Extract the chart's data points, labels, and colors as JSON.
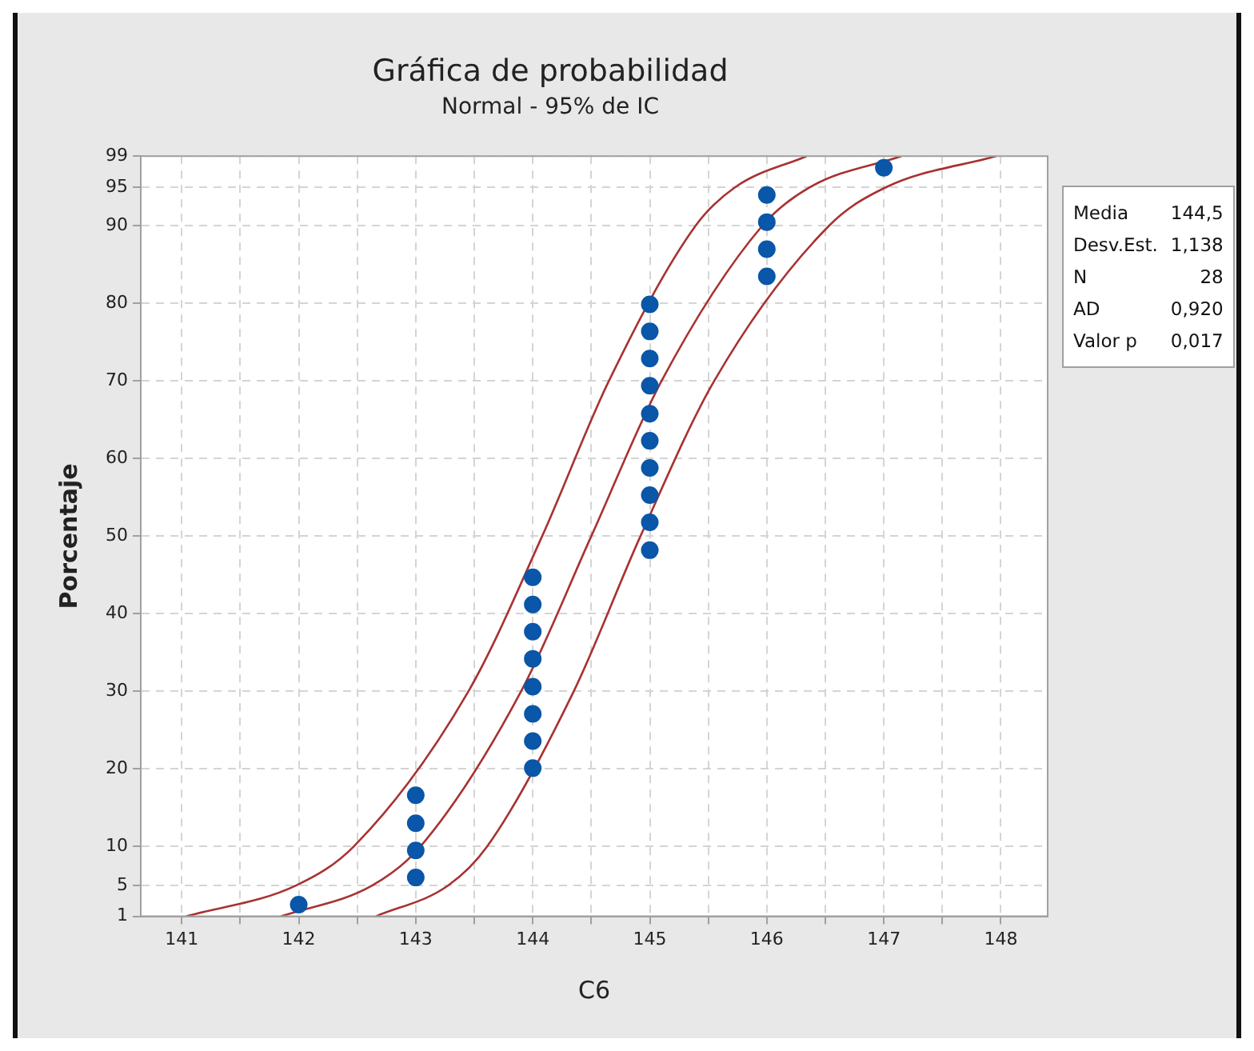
{
  "chart_data": {
    "type": "scatter",
    "title": "Gráfica de probabilidad",
    "subtitle": "Normal - 95% de IC",
    "xlabel": "C6",
    "ylabel": "Porcentaje",
    "annotations": [
      "Media\t144,5",
      "Desv.Est.\t1,138",
      "N\t28",
      "AD\t0,920",
      "Valor p\t0,017"
    ],
    "series": [
      {
        "color": "#0a56a8",
        "marker": "circle",
        "x": [
          142,
          143,
          143,
          143,
          143,
          144,
          144,
          144,
          144,
          144,
          144,
          144,
          144,
          145,
          145,
          145,
          145,
          145,
          145,
          145,
          145,
          145,
          145,
          146,
          146,
          146,
          146,
          147
        ],
        "values": [
          2.5,
          6.0,
          9.5,
          13.0,
          16.6,
          20.1,
          23.6,
          27.1,
          30.6,
          34.2,
          37.7,
          41.2,
          44.7,
          48.2,
          51.8,
          55.3,
          58.8,
          62.3,
          65.8,
          69.4,
          72.9,
          76.4,
          79.9,
          83.5,
          87.0,
          90.5,
          94.0,
          97.5
        ]
      },
      {
        "type": "line",
        "color": "#a83232",
        "marker": "none",
        "x": [
          141.85,
          142.63,
          143.04,
          143.9,
          144.5,
          145.1,
          145.96,
          146.37,
          147.15
        ],
        "values": [
          1,
          5,
          10,
          30,
          50,
          70,
          90,
          95,
          99
        ]
      },
      {
        "type": "line",
        "color": "#a83232",
        "marker": "none",
        "x": [
          141.04,
          141.98,
          142.47,
          143.45,
          144.08,
          144.65,
          145.39,
          145.73,
          146.34
        ],
        "values": [
          1,
          5,
          10,
          30,
          50,
          70,
          90,
          95,
          99
        ]
      },
      {
        "type": "line",
        "color": "#a83232",
        "marker": "none",
        "x": [
          142.66,
          143.28,
          143.61,
          144.35,
          144.92,
          145.55,
          146.53,
          147.02,
          147.96
        ],
        "values": [
          1,
          5,
          10,
          30,
          50,
          70,
          90,
          95,
          99
        ]
      }
    ],
    "xlim": [
      140.65,
      148.4
    ],
    "xticks": [
      141,
      {
        "value": 141.5,
        "label": null
      },
      142,
      {
        "value": 142.5,
        "label": null
      },
      143,
      {
        "value": 143.5,
        "label": null
      },
      144,
      {
        "value": 144.5,
        "label": null
      },
      145,
      {
        "value": 145.5,
        "label": null
      },
      146,
      {
        "value": 146.5,
        "label": null
      },
      147,
      {
        "value": 147.5,
        "label": null
      },
      148
    ],
    "ylim": [
      1,
      99
    ],
    "yticks": [
      1,
      5,
      10,
      20,
      30,
      40,
      50,
      60,
      70,
      80,
      90,
      95,
      99
    ],
    "grid": true,
    "legend": false
  }
}
